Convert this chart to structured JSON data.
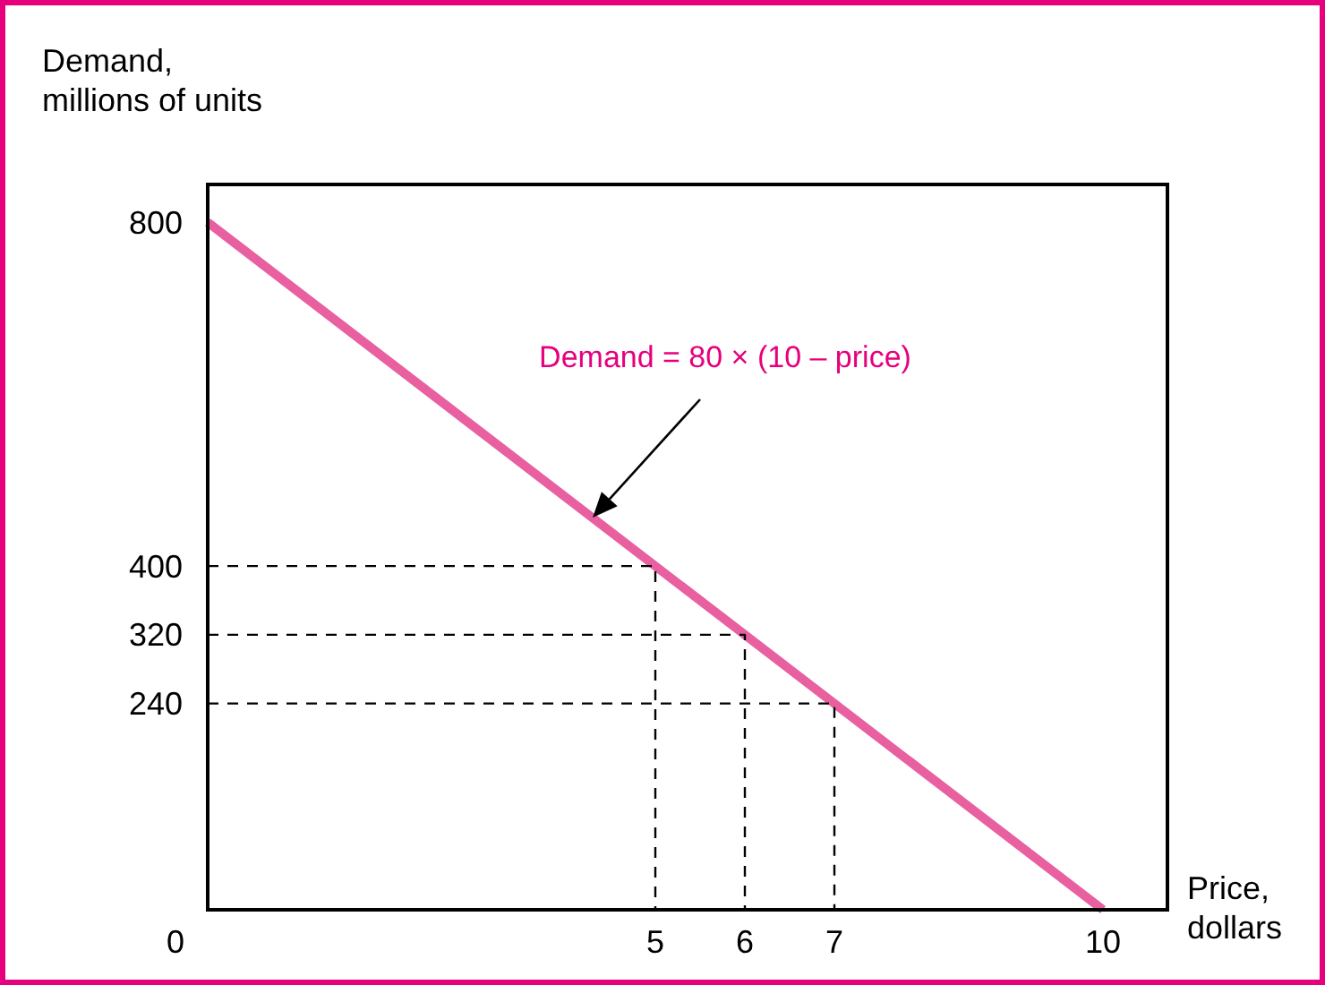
{
  "chart_data": {
    "type": "line",
    "xlabel": "Price,\ndollars",
    "ylabel": "Demand,\nmillions of units",
    "xlim": [
      0,
      10.72
    ],
    "ylim": [
      0,
      844
    ],
    "xticks": [
      0,
      5,
      6,
      7,
      10
    ],
    "yticks": [
      240,
      320,
      400,
      800
    ],
    "grid": false,
    "marker": "none",
    "series": [
      {
        "color": "#e8609f",
        "x": [
          0,
          10
        ],
        "values": [
          800,
          0
        ],
        "line_style": "solid"
      },
      {
        "color": "#000000",
        "x": [
          0,
          5,
          5
        ],
        "values": [
          400,
          400,
          0
        ],
        "line_style": "dashed"
      },
      {
        "color": "#000000",
        "x": [
          0,
          6,
          6
        ],
        "values": [
          320,
          320,
          0
        ],
        "line_style": "dashed"
      },
      {
        "color": "#000000",
        "x": [
          0,
          7,
          7
        ],
        "values": [
          240,
          240,
          0
        ],
        "line_style": "dashed"
      }
    ],
    "annotations": [
      "Demand = 80 × (10 – price)"
    ]
  }
}
